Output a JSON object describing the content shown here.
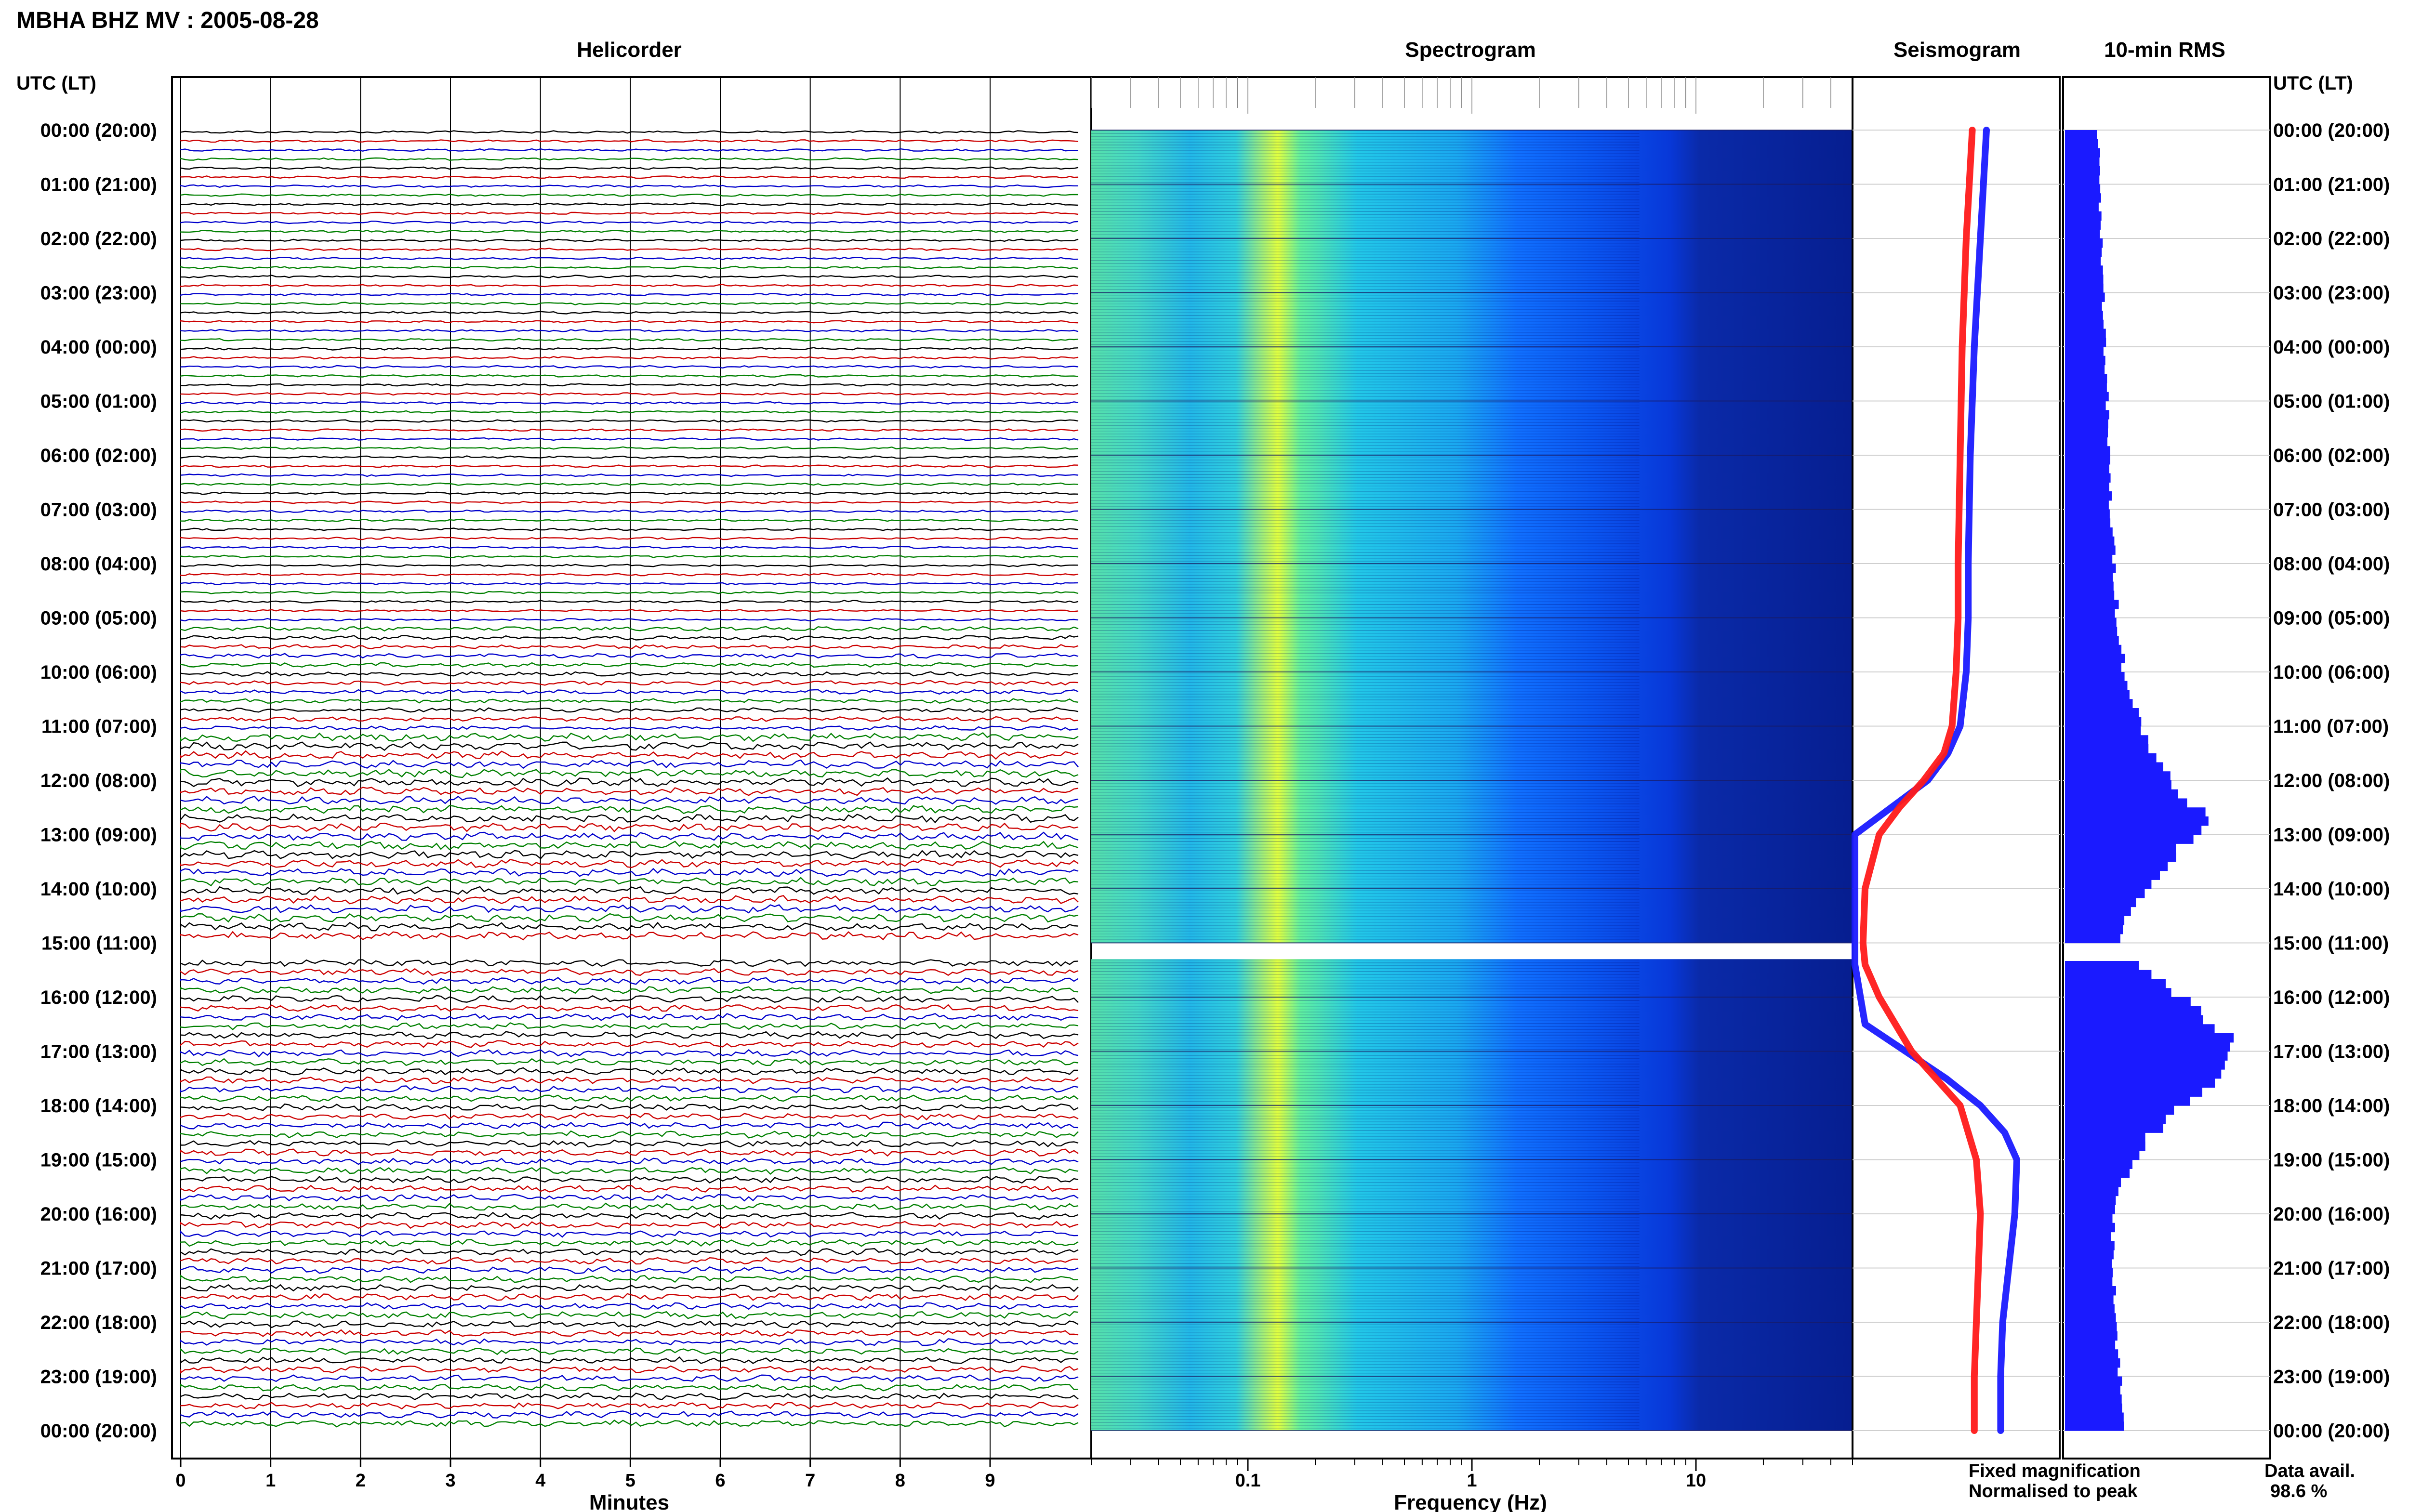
{
  "header": {
    "title": "MBHA BHZ MV : 2005-08-28"
  },
  "panels": {
    "helicorder": "Helicorder",
    "spectrogram": "Spectrogram",
    "seismogram": "Seismogram",
    "rms": "10-min RMS"
  },
  "axis_titles": {
    "utc_left": "UTC (LT)",
    "utc_right": "UTC (LT)",
    "minutes": "Minutes",
    "frequency": "Frequency (Hz)"
  },
  "legend": {
    "fixed": "Fixed magnification",
    "normalised": "Normalised to peak",
    "fixed_color": "#1a1aff",
    "normalised_color": "#ff1a1a"
  },
  "data_availability": {
    "label": "Data avail.",
    "value": "98.6 %"
  },
  "chart_data": {
    "type": "line",
    "time_labels": [
      "00:00 (20:00)",
      "01:00 (21:00)",
      "02:00 (22:00)",
      "03:00 (23:00)",
      "04:00 (00:00)",
      "05:00 (01:00)",
      "06:00 (02:00)",
      "07:00 (03:00)",
      "08:00 (04:00)",
      "09:00 (05:00)",
      "10:00 (06:00)",
      "11:00 (07:00)",
      "12:00 (08:00)",
      "13:00 (09:00)",
      "14:00 (10:00)",
      "15:00 (11:00)",
      "16:00 (12:00)",
      "17:00 (13:00)",
      "18:00 (14:00)",
      "19:00 (15:00)",
      "20:00 (16:00)",
      "21:00 (17:00)",
      "22:00 (18:00)",
      "23:00 (19:00)",
      "00:00 (20:00)"
    ],
    "minutes_ticks": [
      "0",
      "1",
      "2",
      "3",
      "4",
      "5",
      "6",
      "7",
      "8",
      "9"
    ],
    "frequency_ticks": [
      "0.1",
      "1",
      "10"
    ],
    "frequency_range_hz": [
      0.02,
      50
    ],
    "helicorder_colors": [
      "#000000",
      "#cc0000",
      "#0000cc",
      "#008000"
    ],
    "spectrogram_colors": [
      "#000080",
      "#0000cd",
      "#0050ff",
      "#00aaff",
      "#00dddd",
      "#66ff99",
      "#ffff00"
    ],
    "data_gap_utc_hours": [
      15.0,
      15.3
    ],
    "rms_bin_minutes": 10,
    "rms_color": "#1a1aff",
    "rms_series": [
      {
        "hour": 0,
        "value": 0.18
      },
      {
        "hour": 1,
        "value": 0.19
      },
      {
        "hour": 2,
        "value": 0.2
      },
      {
        "hour": 3,
        "value": 0.21
      },
      {
        "hour": 4,
        "value": 0.22
      },
      {
        "hour": 5,
        "value": 0.23
      },
      {
        "hour": 6,
        "value": 0.24
      },
      {
        "hour": 7,
        "value": 0.25
      },
      {
        "hour": 8,
        "value": 0.27
      },
      {
        "hour": 9,
        "value": 0.29
      },
      {
        "hour": 10,
        "value": 0.33
      },
      {
        "hour": 11,
        "value": 0.42
      },
      {
        "hour": 11.5,
        "value": 0.5
      },
      {
        "hour": 12,
        "value": 0.6
      },
      {
        "hour": 12.4,
        "value": 0.72
      },
      {
        "hour": 12.6,
        "value": 0.78
      },
      {
        "hour": 13,
        "value": 0.68
      },
      {
        "hour": 13.5,
        "value": 0.55
      },
      {
        "hour": 14,
        "value": 0.42
      },
      {
        "hour": 14.5,
        "value": 0.33
      },
      {
        "hour": 15,
        "value": 0.3
      },
      {
        "hour": 15.6,
        "value": 0.5
      },
      {
        "hour": 16,
        "value": 0.68
      },
      {
        "hour": 16.5,
        "value": 0.85
      },
      {
        "hour": 16.8,
        "value": 0.95
      },
      {
        "hour": 17,
        "value": 0.92
      },
      {
        "hour": 17.5,
        "value": 0.78
      },
      {
        "hour": 18,
        "value": 0.62
      },
      {
        "hour": 18.5,
        "value": 0.46
      },
      {
        "hour": 19,
        "value": 0.36
      },
      {
        "hour": 19.5,
        "value": 0.3
      },
      {
        "hour": 20,
        "value": 0.26
      },
      {
        "hour": 21,
        "value": 0.27
      },
      {
        "hour": 22,
        "value": 0.28
      },
      {
        "hour": 23,
        "value": 0.3
      },
      {
        "hour": 24,
        "value": 0.32
      }
    ],
    "seismogram_series": [
      {
        "name": "Fixed magnification",
        "color": "#1a1aff",
        "points": [
          {
            "hour": 0,
            "value": 0.65
          },
          {
            "hour": 2,
            "value": 0.62
          },
          {
            "hour": 4,
            "value": 0.59
          },
          {
            "hour": 6,
            "value": 0.57
          },
          {
            "hour": 8,
            "value": 0.56
          },
          {
            "hour": 9,
            "value": 0.56
          },
          {
            "hour": 10,
            "value": 0.55
          },
          {
            "hour": 11,
            "value": 0.52
          },
          {
            "hour": 11.5,
            "value": 0.46
          },
          {
            "hour": 12,
            "value": 0.36
          },
          {
            "hour": 12.5,
            "value": 0.18
          },
          {
            "hour": 13,
            "value": 0.0
          },
          {
            "hour": 15.4,
            "value": 0.0
          },
          {
            "hour": 16.5,
            "value": 0.05
          },
          {
            "hour": 17,
            "value": 0.25
          },
          {
            "hour": 17.5,
            "value": 0.45
          },
          {
            "hour": 18,
            "value": 0.62
          },
          {
            "hour": 18.5,
            "value": 0.74
          },
          {
            "hour": 19,
            "value": 0.8
          },
          {
            "hour": 20,
            "value": 0.79
          },
          {
            "hour": 21,
            "value": 0.76
          },
          {
            "hour": 22,
            "value": 0.73
          },
          {
            "hour": 23,
            "value": 0.72
          },
          {
            "hour": 24,
            "value": 0.72
          }
        ]
      },
      {
        "name": "Normalised to peak",
        "color": "#ff1a1a",
        "points": [
          {
            "hour": 0,
            "value": 0.58
          },
          {
            "hour": 2,
            "value": 0.55
          },
          {
            "hour": 4,
            "value": 0.53
          },
          {
            "hour": 6,
            "value": 0.52
          },
          {
            "hour": 8,
            "value": 0.51
          },
          {
            "hour": 9,
            "value": 0.51
          },
          {
            "hour": 10,
            "value": 0.5
          },
          {
            "hour": 11,
            "value": 0.48
          },
          {
            "hour": 11.5,
            "value": 0.44
          },
          {
            "hour": 12,
            "value": 0.34
          },
          {
            "hour": 12.5,
            "value": 0.22
          },
          {
            "hour": 13,
            "value": 0.12
          },
          {
            "hour": 14,
            "value": 0.05
          },
          {
            "hour": 15,
            "value": 0.04
          },
          {
            "hour": 15.4,
            "value": 0.05
          },
          {
            "hour": 16,
            "value": 0.12
          },
          {
            "hour": 17,
            "value": 0.28
          },
          {
            "hour": 17.5,
            "value": 0.4
          },
          {
            "hour": 18,
            "value": 0.52
          },
          {
            "hour": 19,
            "value": 0.6
          },
          {
            "hour": 20,
            "value": 0.62
          },
          {
            "hour": 21,
            "value": 0.61
          },
          {
            "hour": 22,
            "value": 0.6
          },
          {
            "hour": 23,
            "value": 0.59
          },
          {
            "hour": 24,
            "value": 0.59
          }
        ]
      }
    ]
  }
}
